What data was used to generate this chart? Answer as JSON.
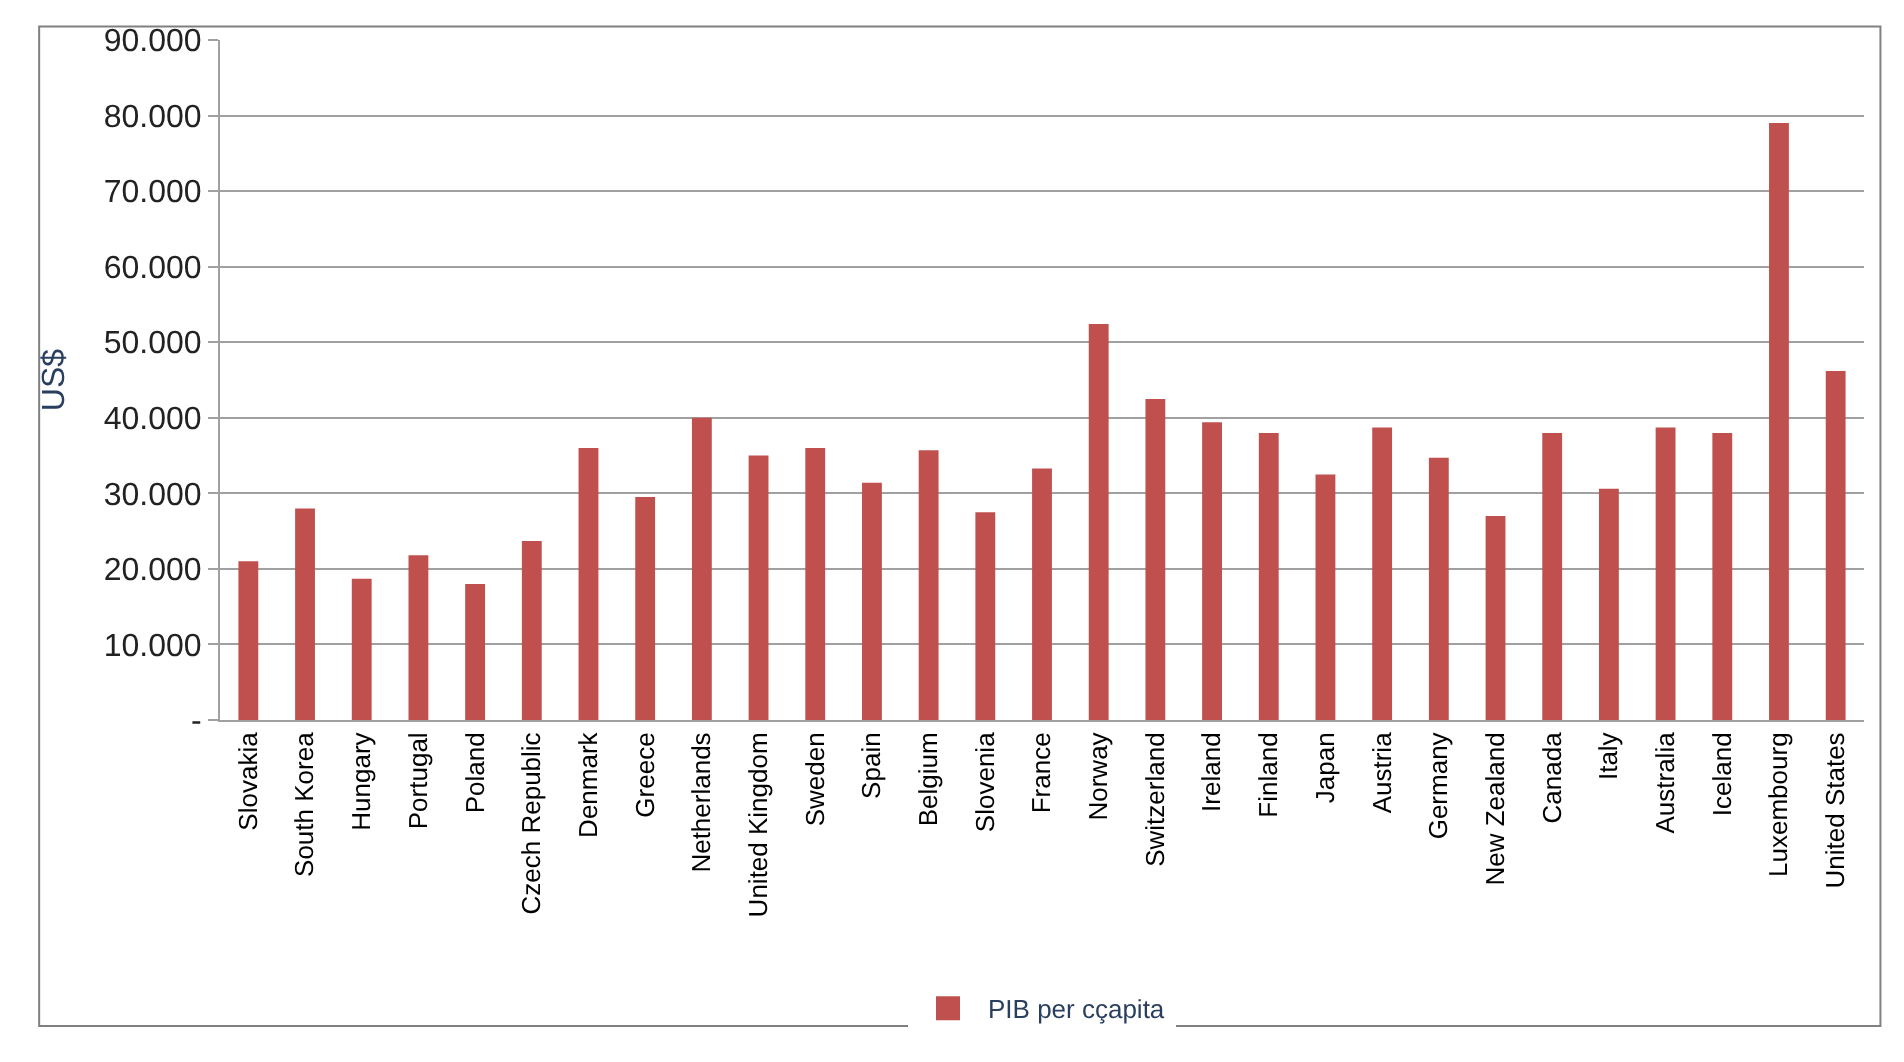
{
  "chart_data": {
    "type": "bar",
    "ylabel": "US$",
    "categories": [
      "Slovakia",
      "South Korea",
      "Hungary",
      "Portugal",
      "Poland",
      "Czech Republic",
      "Denmark",
      "Greece",
      "Netherlands",
      "United Kingdom",
      "Sweden",
      "Spain",
      "Belgium",
      "Slovenia",
      "France",
      "Norway",
      "Switzerland",
      "Ireland",
      "Finland",
      "Japan",
      "Austria",
      "Germany",
      "New Zealand",
      "Canada",
      "Italy",
      "Australia",
      "Iceland",
      "Luxembourg",
      "United States"
    ],
    "series": [
      {
        "name": "PIB per cçapita",
        "color": "#c0504d",
        "values": [
          21000,
          28000,
          18700,
          21800,
          18000,
          23700,
          36000,
          29500,
          40000,
          35000,
          36000,
          31400,
          35700,
          27500,
          33300,
          52400,
          42500,
          39400,
          38000,
          32500,
          38700,
          34700,
          27000,
          38000,
          30600,
          38700,
          38000,
          79000,
          46200
        ]
      }
    ],
    "ylim": [
      0,
      90000
    ],
    "yticks": [
      {
        "value": 0,
        "label": "-"
      },
      {
        "value": 10000,
        "label": "10.000"
      },
      {
        "value": 20000,
        "label": "20.000"
      },
      {
        "value": 30000,
        "label": "30.000"
      },
      {
        "value": 40000,
        "label": "40.000"
      },
      {
        "value": 50000,
        "label": "50.000"
      },
      {
        "value": 60000,
        "label": "60.000"
      },
      {
        "value": 70000,
        "label": "70.000"
      },
      {
        "value": 80000,
        "label": "80.000"
      },
      {
        "value": 90000,
        "label": "90.000"
      }
    ],
    "grid": "y",
    "legend": "bottom"
  }
}
